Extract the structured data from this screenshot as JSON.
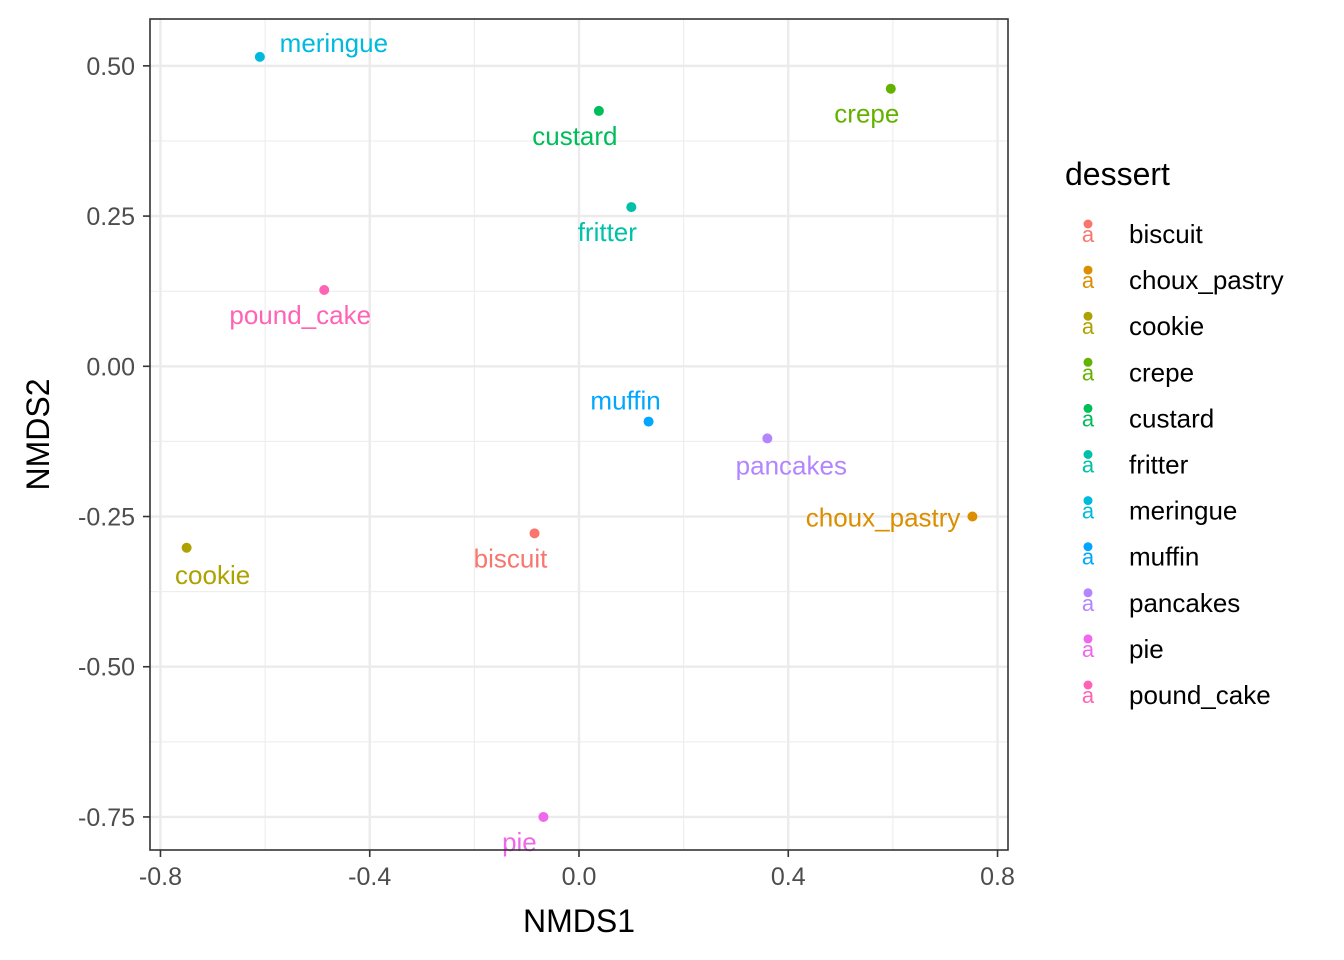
{
  "chart_data": {
    "type": "scatter",
    "title": "",
    "xlabel": "NMDS1",
    "ylabel": "NMDS2",
    "xlim": [
      -0.82,
      0.82
    ],
    "ylim": [
      -0.805,
      0.578
    ],
    "x_ticks": [
      -0.8,
      -0.4,
      0.0,
      0.4,
      0.8
    ],
    "x_tick_labels": [
      "-0.8",
      "-0.4",
      "0.0",
      "0.4",
      "0.8"
    ],
    "y_ticks": [
      -0.75,
      -0.5,
      -0.25,
      0.0,
      0.25,
      0.5
    ],
    "y_tick_labels": [
      "-0.75",
      "-0.50",
      "-0.25",
      "0.00",
      "0.25",
      "0.50"
    ],
    "grid": true,
    "legend": {
      "title": "dessert",
      "placement": "right",
      "key_glyph": "a"
    },
    "points": [
      {
        "name": "biscuit",
        "x": -0.085,
        "y": -0.278,
        "color": "#F8766D",
        "label_pos": "below-left"
      },
      {
        "name": "choux_pastry",
        "x": 0.752,
        "y": -0.25,
        "color": "#DB8E00",
        "label_pos": "left"
      },
      {
        "name": "cookie",
        "x": -0.75,
        "y": -0.302,
        "color": "#AEA200",
        "label_pos": "below-right"
      },
      {
        "name": "crepe",
        "x": 0.596,
        "y": 0.462,
        "color": "#64B200",
        "label_pos": "below-left"
      },
      {
        "name": "custard",
        "x": 0.038,
        "y": 0.425,
        "color": "#00BD5C",
        "label_pos": "below-left"
      },
      {
        "name": "fritter",
        "x": 0.1,
        "y": 0.265,
        "color": "#00C1A7",
        "label_pos": "below-left"
      },
      {
        "name": "meringue",
        "x": -0.61,
        "y": 0.515,
        "color": "#00BADE",
        "label_pos": "above-right"
      },
      {
        "name": "muffin",
        "x": 0.133,
        "y": -0.092,
        "color": "#00A6FF",
        "label_pos": "above-left"
      },
      {
        "name": "pancakes",
        "x": 0.36,
        "y": -0.12,
        "color": "#B385FF",
        "label_pos": "below"
      },
      {
        "name": "pie",
        "x": -0.068,
        "y": -0.75,
        "color": "#EF67EB",
        "label_pos": "below-left"
      },
      {
        "name": "pound_cake",
        "x": -0.487,
        "y": 0.127,
        "color": "#FF63B6",
        "label_pos": "below-left"
      }
    ]
  }
}
